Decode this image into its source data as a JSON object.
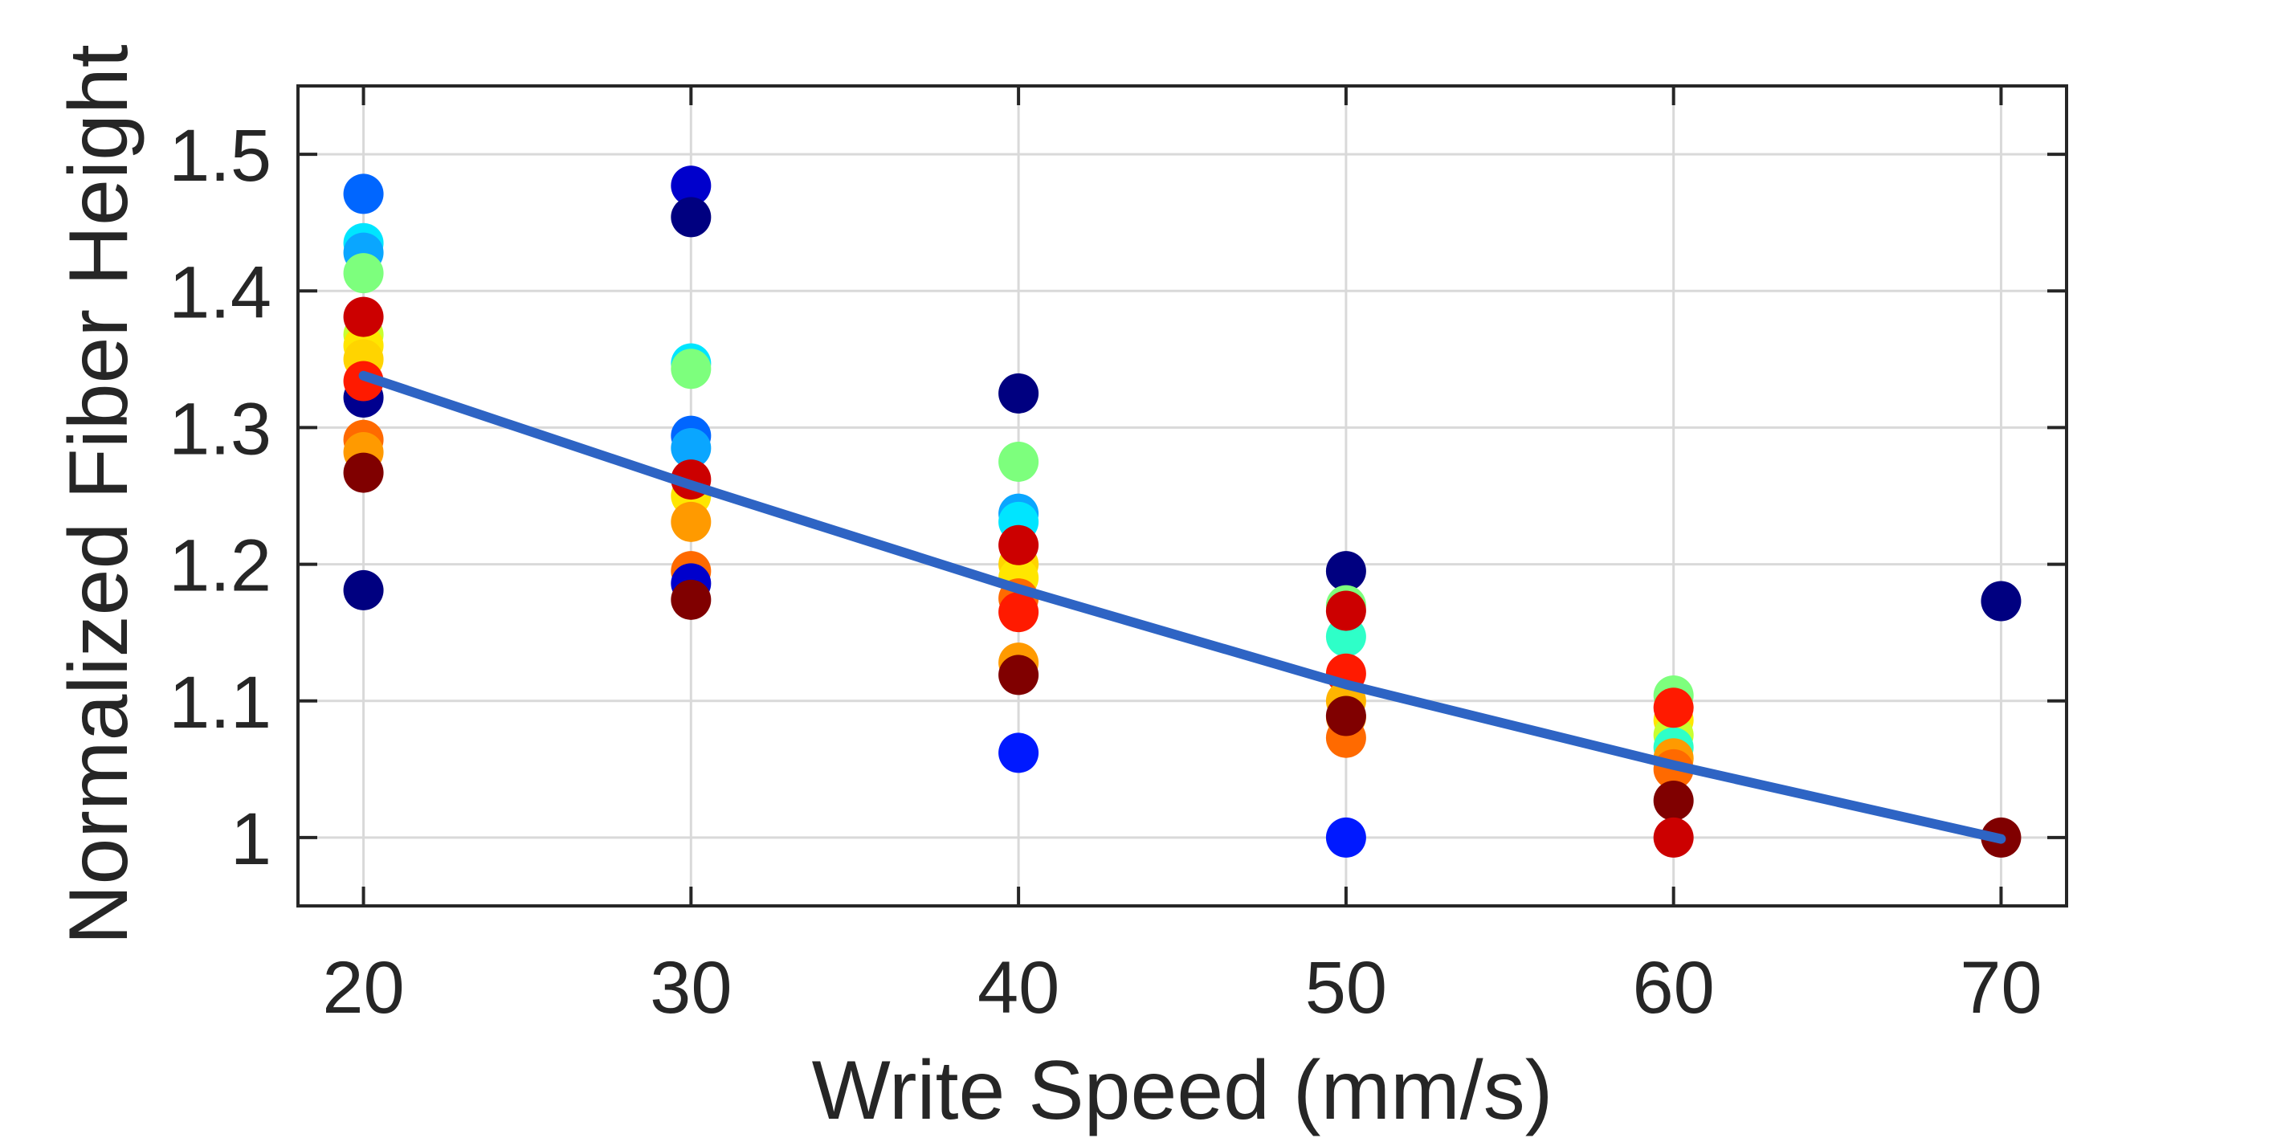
{
  "chart_data": {
    "type": "scatter",
    "title": "",
    "xlabel": "Write Speed (mm/s)",
    "ylabel": "Normalized Fiber Height",
    "xlim": [
      18,
      72
    ],
    "ylim": [
      0.95,
      1.55
    ],
    "xticks": [
      20,
      30,
      40,
      50,
      60,
      70
    ],
    "yticks": [
      1,
      1.1,
      1.2,
      1.3,
      1.4,
      1.5
    ],
    "xtick_labels": [
      "20",
      "30",
      "40",
      "50",
      "60",
      "70"
    ],
    "ytick_labels": [
      "1",
      "1.1",
      "1.2",
      "1.3",
      "1.4",
      "1.5"
    ],
    "grid": true,
    "box": true,
    "points": [
      {
        "x": 20,
        "y": 1.471,
        "color": "#0066ff"
      },
      {
        "x": 20,
        "y": 1.435,
        "color": "#00e5ff"
      },
      {
        "x": 20,
        "y": 1.428,
        "color": "#0aa6ff"
      },
      {
        "x": 20,
        "y": 1.413,
        "color": "#7dff7d"
      },
      {
        "x": 20,
        "y": 1.368,
        "color": "#c8ff2e"
      },
      {
        "x": 20,
        "y": 1.36,
        "color": "#ffe600"
      },
      {
        "x": 20,
        "y": 1.35,
        "color": "#ffd400"
      },
      {
        "x": 20,
        "y": 1.381,
        "color": "#cc0000"
      },
      {
        "x": 20,
        "y": 1.322,
        "color": "#00008f"
      },
      {
        "x": 20,
        "y": 1.334,
        "color": "#ff1a00"
      },
      {
        "x": 20,
        "y": 1.291,
        "color": "#ff6a00"
      },
      {
        "x": 20,
        "y": 1.282,
        "color": "#ff9a00"
      },
      {
        "x": 20,
        "y": 1.267,
        "color": "#800000"
      },
      {
        "x": 20,
        "y": 1.181,
        "color": "#000080"
      },
      {
        "x": 30,
        "y": 1.477,
        "color": "#0000cc"
      },
      {
        "x": 30,
        "y": 1.454,
        "color": "#000080"
      },
      {
        "x": 30,
        "y": 1.347,
        "color": "#00e5ff"
      },
      {
        "x": 30,
        "y": 1.343,
        "color": "#7dff7d"
      },
      {
        "x": 30,
        "y": 1.294,
        "color": "#0066ff"
      },
      {
        "x": 30,
        "y": 1.285,
        "color": "#0aa6ff"
      },
      {
        "x": 30,
        "y": 1.25,
        "color": "#ffe600"
      },
      {
        "x": 30,
        "y": 1.262,
        "color": "#cc0000"
      },
      {
        "x": 30,
        "y": 1.231,
        "color": "#ff9a00"
      },
      {
        "x": 30,
        "y": 1.195,
        "color": "#ff6a00"
      },
      {
        "x": 30,
        "y": 1.186,
        "color": "#0000cc"
      },
      {
        "x": 30,
        "y": 1.174,
        "color": "#800000"
      },
      {
        "x": 40,
        "y": 1.325,
        "color": "#000080"
      },
      {
        "x": 40,
        "y": 1.275,
        "color": "#7dff7d"
      },
      {
        "x": 40,
        "y": 1.237,
        "color": "#0aa6ff"
      },
      {
        "x": 40,
        "y": 1.231,
        "color": "#00e5ff"
      },
      {
        "x": 40,
        "y": 1.2,
        "color": "#ffd400"
      },
      {
        "x": 40,
        "y": 1.19,
        "color": "#ffe600"
      },
      {
        "x": 40,
        "y": 1.214,
        "color": "#cc0000"
      },
      {
        "x": 40,
        "y": 1.175,
        "color": "#ff6a00"
      },
      {
        "x": 40,
        "y": 1.165,
        "color": "#ff1a00"
      },
      {
        "x": 40,
        "y": 1.128,
        "color": "#ff9a00"
      },
      {
        "x": 40,
        "y": 1.119,
        "color": "#800000"
      },
      {
        "x": 40,
        "y": 1.062,
        "color": "#0019ff"
      },
      {
        "x": 50,
        "y": 1.195,
        "color": "#000080"
      },
      {
        "x": 50,
        "y": 1.17,
        "color": "#7dff7d"
      },
      {
        "x": 50,
        "y": 1.147,
        "color": "#2effc8"
      },
      {
        "x": 50,
        "y": 1.166,
        "color": "#cc0000"
      },
      {
        "x": 50,
        "y": 1.12,
        "color": "#ff1a00"
      },
      {
        "x": 50,
        "y": 1.1,
        "color": "#ffb400"
      },
      {
        "x": 50,
        "y": 1.088,
        "color": "#ff9a00"
      },
      {
        "x": 50,
        "y": 1.073,
        "color": "#ff6a00"
      },
      {
        "x": 50,
        "y": 1.089,
        "color": "#800000"
      },
      {
        "x": 50,
        "y": 1.0,
        "color": "#0019ff"
      },
      {
        "x": 60,
        "y": 1.104,
        "color": "#7dff7d"
      },
      {
        "x": 60,
        "y": 1.086,
        "color": "#ffe600"
      },
      {
        "x": 60,
        "y": 1.075,
        "color": "#c8ff2e"
      },
      {
        "x": 60,
        "y": 1.066,
        "color": "#2effc8"
      },
      {
        "x": 60,
        "y": 1.058,
        "color": "#ff9a00"
      },
      {
        "x": 60,
        "y": 1.05,
        "color": "#ff6a00"
      },
      {
        "x": 60,
        "y": 1.095,
        "color": "#ff1a00"
      },
      {
        "x": 60,
        "y": 1.027,
        "color": "#800000"
      },
      {
        "x": 60,
        "y": 1.0,
        "color": "#cc0000"
      },
      {
        "x": 70,
        "y": 1.173,
        "color": "#000080"
      },
      {
        "x": 70,
        "y": 1.0,
        "color": "#800000"
      }
    ],
    "fit_line": {
      "x": [
        20,
        30,
        40,
        50,
        60,
        70
      ],
      "y": [
        1.338,
        1.258,
        1.182,
        1.112,
        1.053,
        0.999
      ],
      "color": "#2e64c4"
    }
  }
}
